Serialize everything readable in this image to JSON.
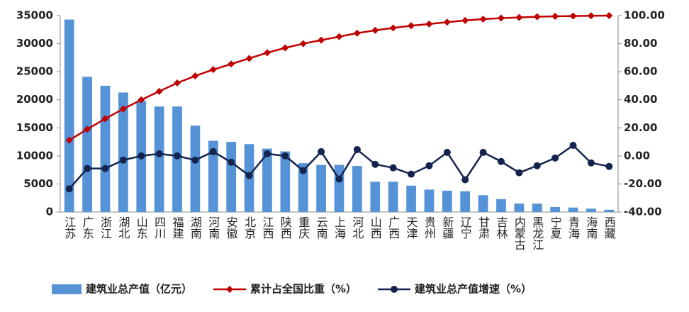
{
  "chart_data": {
    "type": "combo",
    "categories": [
      "江苏",
      "广东",
      "浙江",
      "湖北",
      "山东",
      "四川",
      "福建",
      "湖南",
      "河南",
      "安徽",
      "北京",
      "江西",
      "陕西",
      "重庆",
      "云南",
      "上海",
      "河北",
      "山西",
      "广西",
      "天津",
      "贵州",
      "新疆",
      "辽宁",
      "甘肃",
      "吉林",
      "内蒙古",
      "黑龙江",
      "宁夏",
      "青海",
      "海南",
      "西藏"
    ],
    "series": [
      {
        "name": "建筑业总产值（亿元）",
        "type": "bar",
        "color": "#5592d6",
        "values": [
          34300,
          24100,
          22500,
          21300,
          19800,
          18800,
          18800,
          15400,
          12700,
          12500,
          12100,
          11300,
          10800,
          8700,
          8400,
          8400,
          8200,
          5400,
          5400,
          4700,
          4000,
          3800,
          3700,
          3000,
          2300,
          1500,
          1500,
          900,
          800,
          600,
          400
        ]
      },
      {
        "name": "累计占全国比重（%）",
        "type": "line",
        "axis": "y2",
        "marker": "diamond",
        "color": "#c00000",
        "values": [
          11.2,
          19.0,
          26.5,
          33.5,
          40,
          46,
          52,
          57,
          61.5,
          65.5,
          69.5,
          73.5,
          77,
          80,
          82.5,
          85,
          87.5,
          89.5,
          91.2,
          92.8,
          94,
          95.3,
          96.5,
          97.5,
          98.2,
          98.7,
          99.2,
          99.5,
          99.7,
          99.9,
          100
        ]
      },
      {
        "name": "建筑业总产值增速（%）",
        "type": "line",
        "axis": "y2",
        "marker": "circle",
        "color": "#14244f",
        "values": [
          -23.5,
          -9,
          -9,
          -3,
          0,
          1.5,
          0,
          -3,
          3,
          -4.5,
          -14,
          1.5,
          0,
          -10.5,
          3,
          -16.5,
          4.5,
          -6,
          -8.5,
          -13,
          -7,
          2.5,
          -17,
          2.5,
          -4,
          -12,
          -7,
          -1.5,
          7.5,
          -5,
          -7.5
        ]
      }
    ],
    "ylim": [
      0,
      35000
    ],
    "yticks": [
      0,
      5000,
      10000,
      15000,
      20000,
      25000,
      30000,
      35000
    ],
    "y2lim": [
      -40,
      100
    ],
    "y2ticks": [
      {
        "value": -40,
        "label": "-40.00"
      },
      {
        "value": -20,
        "label": "-20.00"
      },
      {
        "value": 0,
        "label": "0.00"
      },
      {
        "value": 20,
        "label": "20.00"
      },
      {
        "value": 40,
        "label": "40.00"
      },
      {
        "value": 60,
        "label": "60.00"
      },
      {
        "value": 80,
        "label": "80.00"
      },
      {
        "value": 100,
        "label": "100.00"
      }
    ],
    "grid": false,
    "legend": "bottom"
  }
}
